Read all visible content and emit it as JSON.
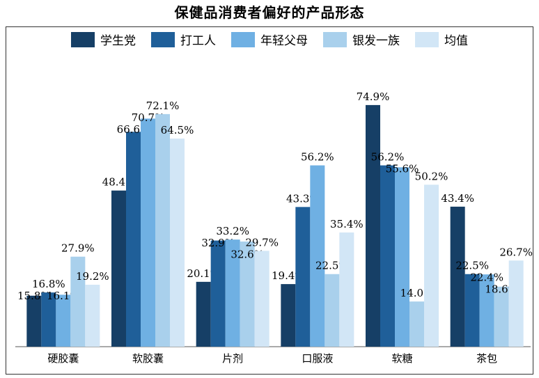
{
  "chart_data": {
    "type": "bar",
    "title": "保健品消费者偏好的产品形态",
    "categories": [
      "硬胶囊",
      "软胶囊",
      "片剂",
      "口服液",
      "软糖",
      "茶包"
    ],
    "series": [
      {
        "name": "学生党",
        "color": "#163f66",
        "values": [
          15.8,
          48.4,
          20.1,
          19.4,
          74.9,
          43.4
        ]
      },
      {
        "name": "打工人",
        "color": "#1f5f99",
        "values": [
          16.8,
          66.6,
          32.9,
          43.3,
          56.2,
          22.5
        ]
      },
      {
        "name": "年轻父母",
        "color": "#6fb0e3",
        "values": [
          16.1,
          70.7,
          33.2,
          56.2,
          55.6,
          22.4
        ]
      },
      {
        "name": "银发一族",
        "color": "#a9d0ec",
        "values": [
          27.9,
          72.1,
          32.6,
          22.5,
          14.0,
          18.6
        ]
      },
      {
        "name": "均值",
        "color": "#d2e6f6",
        "values": [
          19.2,
          64.5,
          29.7,
          35.4,
          50.2,
          26.7
        ]
      }
    ],
    "value_labels": [
      [
        "15.8%",
        "48.4%",
        "20.1%",
        "19.4%",
        "74.9%",
        "43.4%"
      ],
      [
        "16.8%",
        "66.6%",
        "32.9%",
        "43.3%",
        "56.2%",
        "22.5%"
      ],
      [
        "16.1%",
        "70.7%",
        "33.2%",
        "56.2%",
        "55.6%",
        "22.4%"
      ],
      [
        "27.9%",
        "72.1%",
        "32.6%",
        "22.5%",
        "14.0%",
        "18.6%"
      ],
      [
        "19.2%",
        "64.5%",
        "29.7%",
        "35.4%",
        "50.2%",
        "26.7%"
      ]
    ],
    "ylim": [
      0,
      82
    ],
    "legend_position": "top",
    "grid": false
  }
}
